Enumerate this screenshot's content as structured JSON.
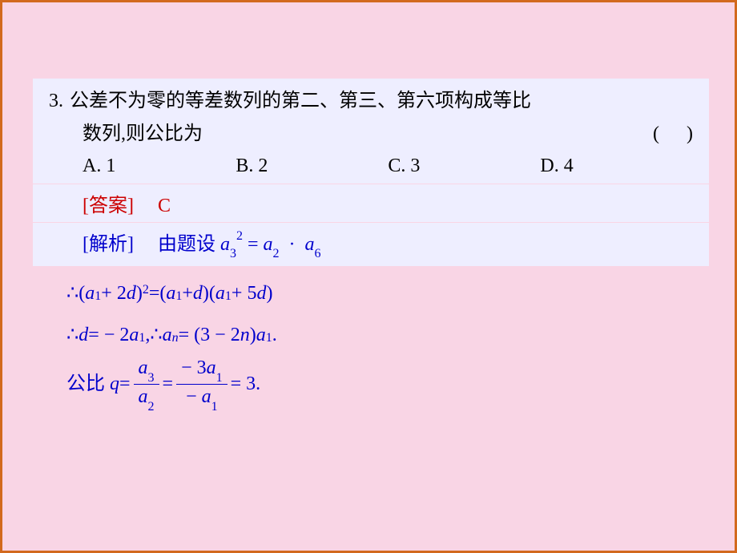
{
  "colors": {
    "page_bg": "#f9d5e5",
    "border": "#d2691e",
    "block_bg": "#eeeeff",
    "text_black": "#000000",
    "text_red": "#cc0000",
    "text_blue": "#0000cc"
  },
  "typography": {
    "body_font": "SimSun, 宋体, serif",
    "math_font": "Times New Roman, serif",
    "base_fontsize": 24,
    "sub_fontsize": 16,
    "line_height": 1.7
  },
  "question": {
    "number": "3.",
    "line1": "公差不为零的等差数列的第二、第三、第六项构成等比",
    "line2_text": "数列,则公比为",
    "paren_open": "(",
    "paren_close": ")"
  },
  "options": {
    "A": "A. 1",
    "B": "B. 2",
    "C": "C. 3",
    "D": "D. 4"
  },
  "answer": {
    "label": "[答案]",
    "value": "C"
  },
  "analysis": {
    "label": "[解析]",
    "prefix": "由题设",
    "eq1_lhs_base": "a",
    "eq1_lhs_sub": "3",
    "eq1_lhs_sup": "2",
    "eq1_rhs1_base": "a",
    "eq1_rhs1_sub": "2",
    "eq1_dot": "·",
    "eq1_rhs2_base": "a",
    "eq1_rhs2_sub": "6"
  },
  "work": {
    "line1": {
      "therefore": "∴",
      "lparen1": "(",
      "a1": "a",
      "sub1": "1",
      "plus2d": " + 2",
      "d1": "d",
      "rparen1": ")",
      "sup2": "2",
      "eq": " = ",
      "lparen2": "(",
      "a2": "a",
      "sub2": "1",
      "plusd": " + ",
      "d2": "d",
      "rparen2": ")",
      "lparen3": "(",
      "a3": "a",
      "sub3": "1",
      "plus5d": " + 5",
      "d3": "d",
      "rparen3": ")"
    },
    "line2": {
      "therefore1": "∴",
      "d": "d",
      "eq_neg2": " = − 2",
      "a1": "a",
      "sub1": "1",
      "comma": " ,",
      "therefore2": "∴",
      "an": "a",
      "subn": "n",
      "eq_expr": " = (3 − 2",
      "n": "n",
      "close": ")",
      "a1b": "a",
      "sub1b": "1",
      "period": "."
    },
    "line3": {
      "label": "公比",
      "q": "q",
      "eq1": " = ",
      "frac1_num_a": "a",
      "frac1_num_sub": "3",
      "frac1_den_a": "a",
      "frac1_den_sub": "2",
      "eq2": " = ",
      "frac2_num_neg3": "− 3",
      "frac2_num_a": "a",
      "frac2_num_sub": "1",
      "frac2_den_neg": "− ",
      "frac2_den_a": "a",
      "frac2_den_sub": "1",
      "eq3": " = 3."
    }
  }
}
